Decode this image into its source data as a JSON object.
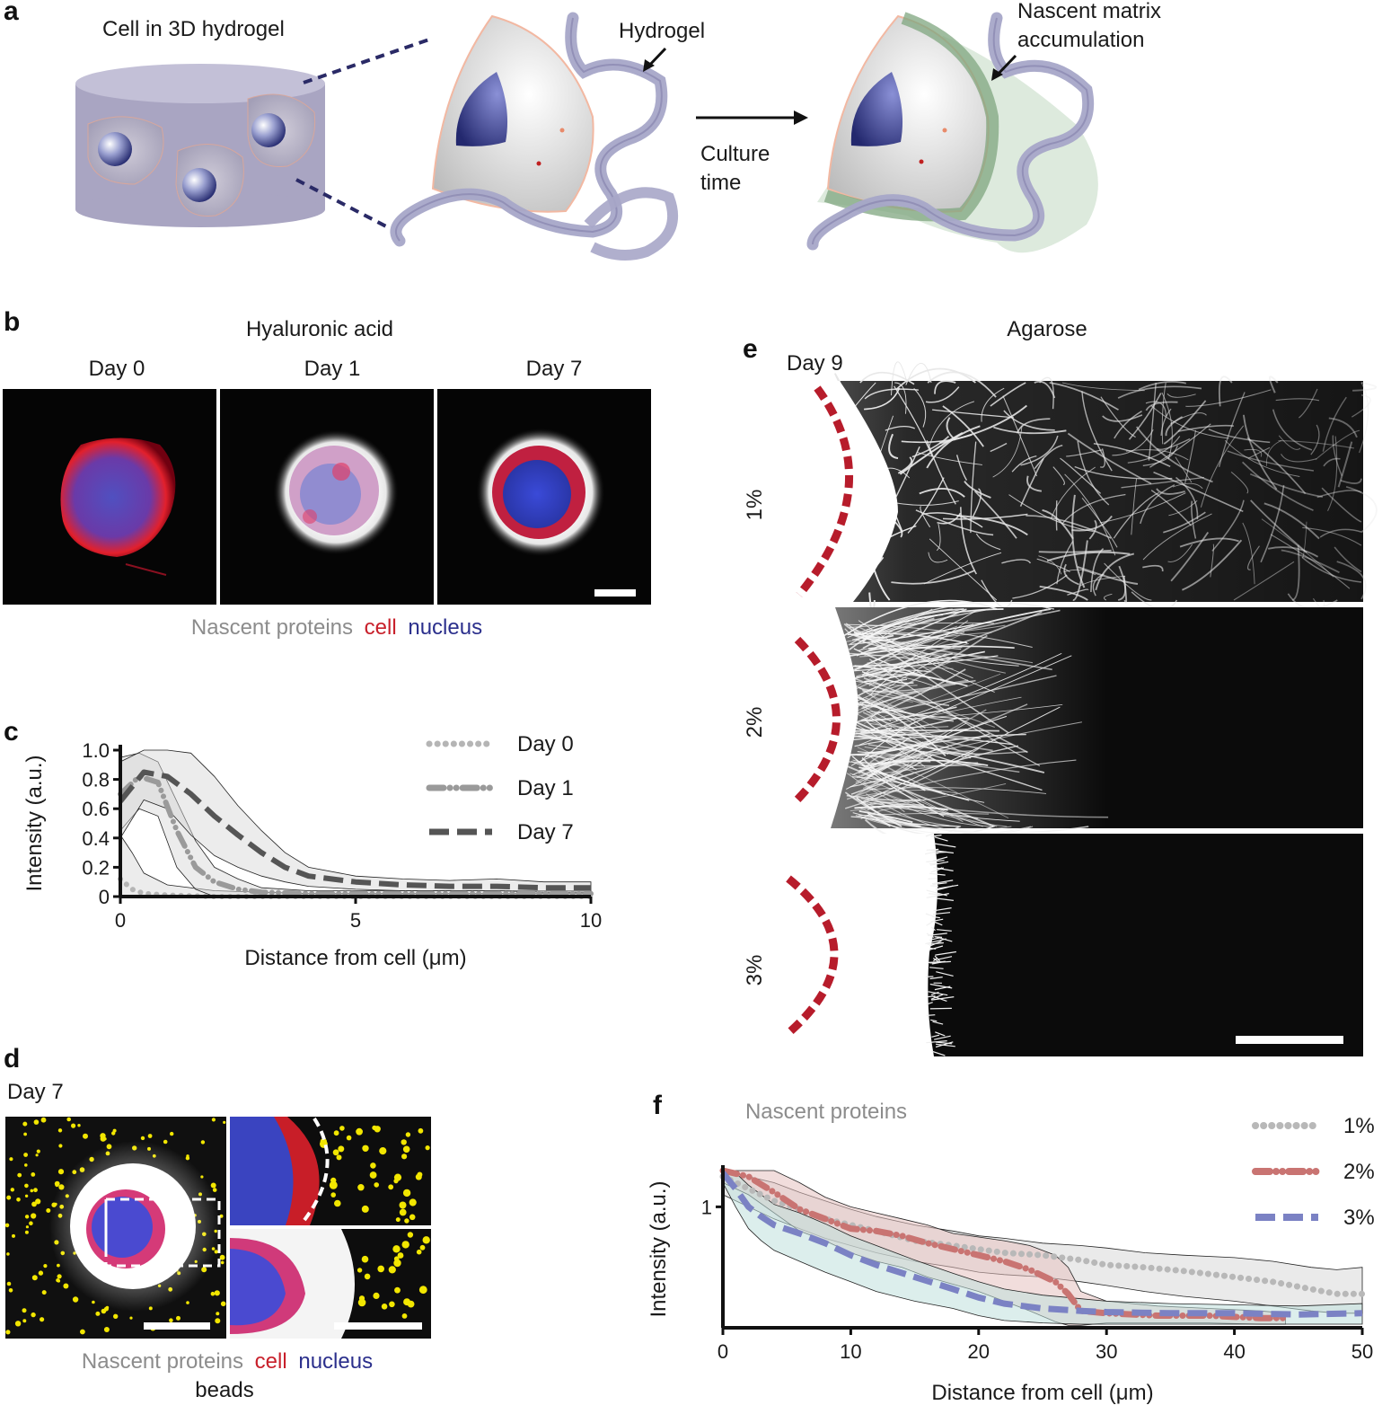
{
  "panels": {
    "a": {
      "label": "a",
      "left_title": "Cell in 3D hydrogel",
      "hydrogel_label": "Hydrogel",
      "process_label": [
        "Culture",
        "time"
      ],
      "right_title": [
        "Nascent matrix",
        "accumulation"
      ]
    },
    "b": {
      "label": "b",
      "title": "Hyaluronic acid",
      "columns": [
        "Day 0",
        "Day 1",
        "Day 7"
      ],
      "caption": [
        {
          "text": "Nascent proteins",
          "color": "#8c8c8c"
        },
        {
          "text": "cell",
          "color": "#c8202b"
        },
        {
          "text": "nucleus",
          "color": "#2b2f8c"
        }
      ]
    },
    "c": {
      "label": "c"
    },
    "d": {
      "label": "d",
      "subtitle": "Day 7",
      "caption_line1": [
        {
          "text": "Nascent proteins",
          "color": "#8c8c8c"
        },
        {
          "text": "cell",
          "color": "#c8202b"
        },
        {
          "text": "nucleus",
          "color": "#2b2f8c"
        }
      ],
      "caption_line2": {
        "text": "beads",
        "color": "#f0921c"
      }
    },
    "e": {
      "label": "e",
      "title": "Agarose",
      "subtitle": "Day 9",
      "rows": [
        "1%",
        "2%",
        "3%"
      ]
    },
    "f": {
      "label": "f",
      "title": "Nascent proteins"
    }
  },
  "chart_data": [
    {
      "id": "c",
      "type": "line",
      "title": "",
      "xlabel": "Distance from cell (μm)",
      "ylabel": "Intensity (a.u.)",
      "xlim": [
        0,
        10
      ],
      "ylim": [
        0,
        1.0
      ],
      "xticks": [
        0,
        5,
        10
      ],
      "yticks": [
        0,
        0.2,
        0.4,
        0.6,
        0.8,
        1.0
      ],
      "ytick_labels": [
        "0",
        "0.2",
        "0.4",
        "0.6",
        "0.8",
        "1.0"
      ],
      "grid": false,
      "legend_position": "top-right",
      "series": [
        {
          "name": "Day 0",
          "style": "dotted",
          "color": "#b5b5b5",
          "x": [
            0,
            0.25,
            0.5,
            1,
            2,
            4,
            6,
            8,
            10
          ],
          "y": [
            0.12,
            0.05,
            0.02,
            0.01,
            0.0,
            0.0,
            0.0,
            0.0,
            0.0
          ],
          "band_upper": [
            0.42,
            0.3,
            0.16,
            0.08,
            0.04,
            0.02,
            0.02,
            0.02,
            0.02
          ],
          "band_lower": [
            0,
            0,
            0,
            0,
            0,
            0,
            0,
            0,
            0
          ]
        },
        {
          "name": "Day 1",
          "style": "dash-dot",
          "color": "#9a9a9a",
          "x": [
            0,
            0.4,
            0.8,
            1.2,
            1.6,
            2,
            2.5,
            3,
            4,
            6,
            8,
            10
          ],
          "y": [
            0.7,
            0.82,
            0.78,
            0.45,
            0.2,
            0.1,
            0.05,
            0.03,
            0.02,
            0.02,
            0.02,
            0.02
          ],
          "band_upper": [
            0.95,
            0.98,
            0.92,
            0.65,
            0.38,
            0.2,
            0.12,
            0.06,
            0.04,
            0.04,
            0.04,
            0.04
          ],
          "band_lower": [
            0.45,
            0.6,
            0.55,
            0.2,
            0.05,
            0.0,
            0,
            0,
            0,
            0,
            0,
            0
          ]
        },
        {
          "name": "Day 7",
          "style": "dashed",
          "color": "#555555",
          "x": [
            0,
            0.5,
            1,
            1.5,
            2,
            2.5,
            3,
            3.5,
            4,
            5,
            6,
            7,
            8,
            9,
            10
          ],
          "y": [
            0.65,
            0.85,
            0.82,
            0.7,
            0.55,
            0.42,
            0.3,
            0.2,
            0.14,
            0.1,
            0.08,
            0.07,
            0.07,
            0.06,
            0.06
          ],
          "band_upper": [
            0.92,
            1.04,
            1.05,
            0.98,
            0.82,
            0.62,
            0.45,
            0.3,
            0.2,
            0.14,
            0.12,
            0.11,
            0.12,
            0.1,
            0.1
          ],
          "band_lower": [
            0.4,
            0.66,
            0.6,
            0.42,
            0.28,
            0.2,
            0.14,
            0.1,
            0.07,
            0.05,
            0.04,
            0.04,
            0.04,
            0.03,
            0.03
          ]
        }
      ]
    },
    {
      "id": "f",
      "type": "line",
      "title": "",
      "xlabel": "Distance from cell (μm)",
      "ylabel": "Intensity (a.u.)",
      "xlim": [
        0,
        50
      ],
      "ylim": [
        0,
        1.3
      ],
      "xticks": [
        0,
        10,
        20,
        30,
        40,
        50
      ],
      "yticks": [
        1
      ],
      "ytick_labels": [
        "1"
      ],
      "grid": false,
      "legend_position": "top-right",
      "series": [
        {
          "name": "1%",
          "style": "dotted",
          "color": "#b8b8b8",
          "band": "#d9d9d9",
          "x": [
            0,
            2,
            4,
            6,
            8,
            10,
            12,
            15,
            18,
            20,
            22,
            25,
            28,
            30,
            33,
            36,
            40,
            43,
            46,
            48,
            50
          ],
          "y": [
            1.25,
            1.15,
            1.05,
            0.98,
            0.9,
            0.85,
            0.8,
            0.72,
            0.68,
            0.65,
            0.62,
            0.6,
            0.56,
            0.52,
            0.5,
            0.47,
            0.42,
            0.38,
            0.32,
            0.28,
            0.28
          ],
          "band_upper": [
            1.3,
            1.25,
            1.2,
            1.12,
            1.05,
            0.98,
            0.92,
            0.85,
            0.8,
            0.76,
            0.74,
            0.7,
            0.68,
            0.66,
            0.62,
            0.6,
            0.58,
            0.55,
            0.5,
            0.48,
            0.5
          ],
          "band_lower": [
            1.1,
            1.0,
            0.9,
            0.82,
            0.74,
            0.68,
            0.62,
            0.55,
            0.5,
            0.46,
            0.44,
            0.42,
            0.38,
            0.35,
            0.3,
            0.26,
            0.22,
            0.18,
            0.14,
            0.12,
            0.12
          ]
        },
        {
          "name": "2%",
          "style": "dash-dot",
          "color": "#c97472",
          "band": "#e6c1bf",
          "x": [
            0,
            2,
            4,
            6,
            8,
            10,
            12,
            14,
            16,
            18,
            20,
            22,
            24,
            26,
            27,
            28,
            30,
            34,
            38,
            42,
            44
          ],
          "y": [
            1.3,
            1.25,
            1.12,
            0.98,
            0.9,
            0.82,
            0.8,
            0.76,
            0.7,
            0.65,
            0.6,
            0.55,
            0.48,
            0.38,
            0.28,
            0.14,
            0.12,
            0.1,
            0.1,
            0.08,
            0.08
          ],
          "band_upper": [
            1.3,
            1.3,
            1.3,
            1.2,
            1.08,
            1.0,
            0.95,
            0.9,
            0.85,
            0.78,
            0.75,
            0.72,
            0.68,
            0.6,
            0.5,
            0.3,
            0.22,
            0.18,
            0.16,
            0.14,
            0.12
          ],
          "band_lower": [
            1.2,
            1.1,
            0.95,
            0.8,
            0.72,
            0.62,
            0.55,
            0.5,
            0.42,
            0.36,
            0.3,
            0.22,
            0.14,
            0.05,
            0.02,
            0.02,
            0.04,
            0.04,
            0.04,
            0.03,
            0.03
          ]
        },
        {
          "name": "3%",
          "style": "dashed",
          "color": "#7b82c4",
          "band": "#bfe0dc",
          "x": [
            0,
            1,
            2,
            3,
            4,
            6,
            8,
            10,
            12,
            15,
            18,
            20,
            22,
            25,
            28,
            30,
            35,
            40,
            45,
            50
          ],
          "y": [
            1.28,
            1.15,
            1.0,
            0.92,
            0.85,
            0.78,
            0.7,
            0.6,
            0.52,
            0.42,
            0.32,
            0.25,
            0.2,
            0.16,
            0.14,
            0.13,
            0.12,
            0.12,
            0.11,
            0.12
          ],
          "band_upper": [
            1.3,
            1.28,
            1.18,
            1.1,
            1.02,
            0.95,
            0.86,
            0.76,
            0.68,
            0.56,
            0.45,
            0.38,
            0.32,
            0.27,
            0.24,
            0.22,
            0.2,
            0.19,
            0.18,
            0.2
          ],
          "band_lower": [
            1.2,
            1.0,
            0.82,
            0.72,
            0.64,
            0.55,
            0.46,
            0.38,
            0.3,
            0.22,
            0.16,
            0.1,
            0.06,
            0.04,
            0.03,
            0.03,
            0.03,
            0.03,
            0.03,
            0.03
          ]
        }
      ]
    }
  ]
}
